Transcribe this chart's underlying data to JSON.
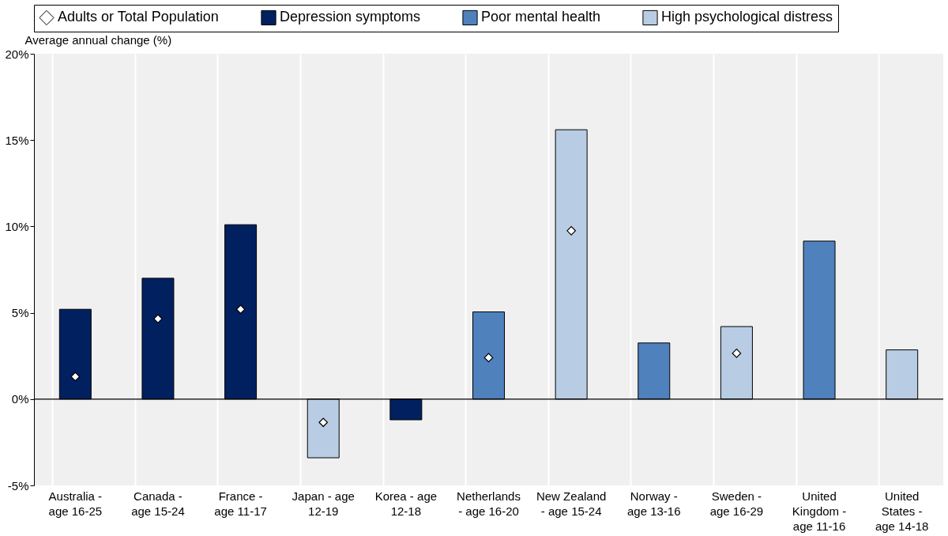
{
  "chart_data": {
    "type": "bar",
    "ylabel": "Average annual change (%)",
    "categories": [
      "Australia - age 16-25",
      "Canada - age 15-24",
      "France - age 11-17",
      "Japan - age 12-19",
      "Korea - age 12-18",
      "Netherlands - age 16-20",
      "New Zealand - age 15-24",
      "Norway - age 13-16",
      "Sweden - age 16-29",
      "United Kingdom - age 11-16",
      "United States - age 14-18"
    ],
    "series": [
      {
        "name": "Adults or Total Population",
        "type": "scatter",
        "marker": "diamond",
        "color": "#ffffff",
        "values": [
          1.3,
          4.65,
          5.2,
          -1.35,
          null,
          2.4,
          9.75,
          null,
          2.65,
          null,
          null
        ]
      },
      {
        "name": "Depression symptoms",
        "color": "#002060",
        "values": [
          5.2,
          7.0,
          10.1,
          null,
          -1.2,
          null,
          null,
          null,
          null,
          null,
          null
        ]
      },
      {
        "name": "Poor mental health",
        "color": "#4f81bd",
        "values": [
          null,
          null,
          null,
          null,
          null,
          5.05,
          null,
          3.25,
          null,
          9.15,
          null
        ]
      },
      {
        "name": "High psychological distress",
        "color": "#b8cce4",
        "values": [
          null,
          null,
          null,
          -3.4,
          null,
          null,
          15.6,
          null,
          4.2,
          null,
          2.85
        ]
      }
    ],
    "ylim": [
      -5,
      20
    ],
    "yticks": [
      {
        "value": -5,
        "label": "-5%"
      },
      {
        "value": 0,
        "label": "0%"
      },
      {
        "value": 5,
        "label": "5%"
      },
      {
        "value": 10,
        "label": "10%"
      },
      {
        "value": 15,
        "label": "15%"
      },
      {
        "value": 20,
        "label": "20%"
      }
    ],
    "ref_lines": [
      {
        "axis": "y",
        "value": 0,
        "color": "#000000"
      }
    ],
    "grid": "x",
    "legend": "top"
  }
}
